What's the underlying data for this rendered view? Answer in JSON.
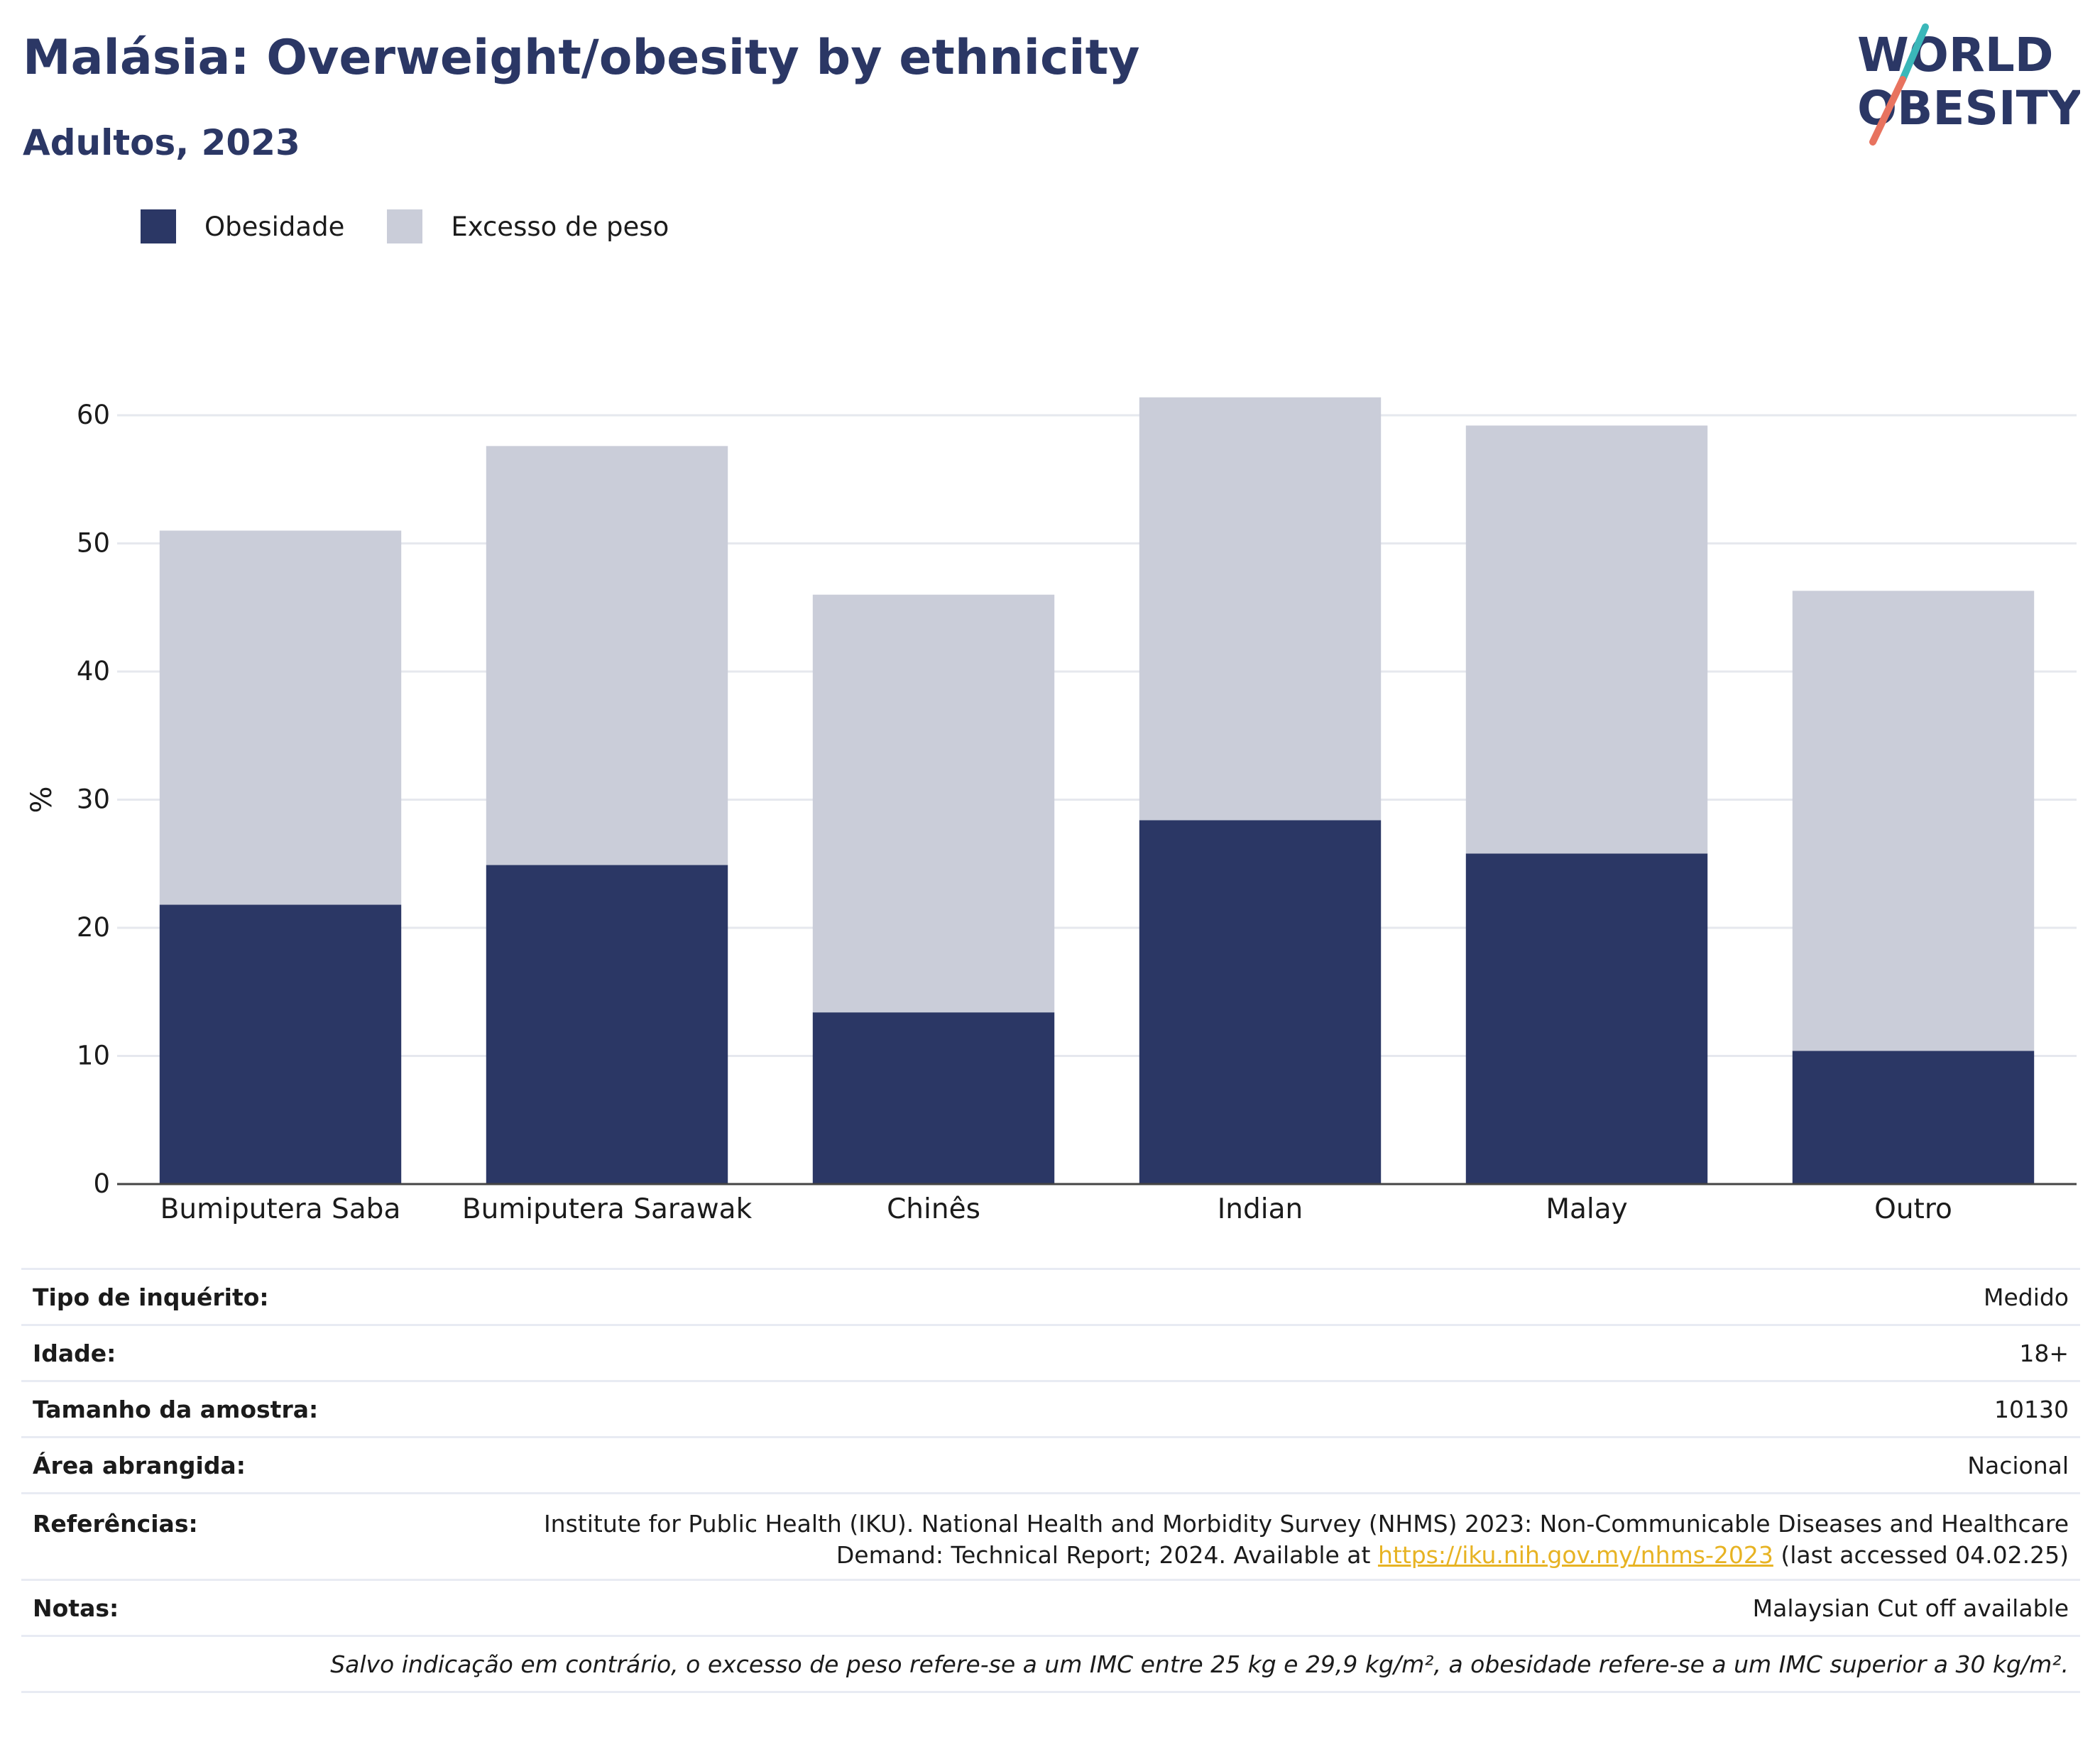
{
  "header": {
    "title": "Malásia: Overweight/obesity by ethnicity",
    "subtitle": "Adultos, 2023"
  },
  "logo": {
    "line1": "WORLD",
    "line2": "OBESITY"
  },
  "legend": {
    "obesity": "Obesidade",
    "overweight": "Excesso de peso"
  },
  "colors": {
    "obesity": "#2b3765",
    "overweight": "#cacdd9",
    "logo_navy": "#2b3765",
    "logo_teal": "#3ab7b9",
    "logo_coral": "#e8735f",
    "link": "#e7b323"
  },
  "chart_data": {
    "type": "bar",
    "stacked": true,
    "categories": [
      "Bumiputera Saba",
      "Bumiputera Sarawak",
      "Chinês",
      "Indian",
      "Malay",
      "Outro"
    ],
    "series": [
      {
        "name": "Obesidade",
        "values": [
          21.8,
          24.9,
          13.4,
          28.4,
          25.8,
          10.4
        ]
      },
      {
        "name": "Excesso de peso",
        "values": [
          29.2,
          32.7,
          32.6,
          33.0,
          33.4,
          35.9
        ]
      }
    ],
    "ylabel": "%",
    "xlabel": "",
    "ylim": [
      0,
      60
    ],
    "yticks": [
      0,
      10,
      20,
      30,
      40,
      50,
      60
    ],
    "grid": true,
    "legend_position": "top-left"
  },
  "info": {
    "survey_label": "Tipo de inquérito:",
    "survey_value": "Medido",
    "age_label": "Idade:",
    "age_value": "18+",
    "sample_label": "Tamanho da amostra:",
    "sample_value": "10130",
    "area_label": "Área abrangida:",
    "area_value": "Nacional",
    "refs_label": "Referências:",
    "refs_line1": "Institute for Public Health (IKU). National Health and Morbidity Survey (NHMS) 2023: Non-Communicable Diseases and Healthcare",
    "refs_line2_pre": "Demand: Technical Report; 2024. Available at ",
    "refs_link": "https://iku.nih.gov.my/nhms-2023",
    "refs_line2_post": " (last accessed 04.02.25)",
    "notes_label": "Notas:",
    "notes_value": "Malaysian Cut off available",
    "footnote": "Salvo indicação em contrário, o excesso de peso refere-se a um IMC entre 25 kg e 29,9 kg/m², a obesidade refere-se a um IMC superior a 30 kg/m²."
  }
}
